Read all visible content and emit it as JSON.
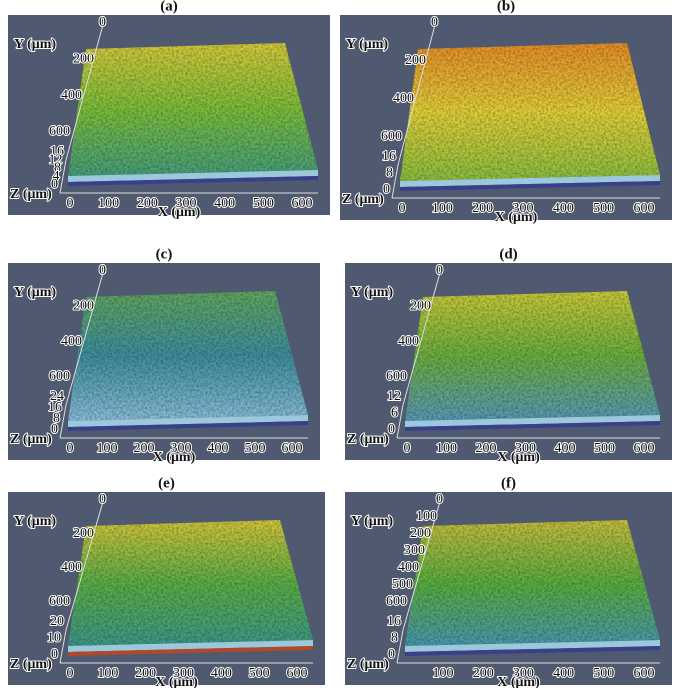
{
  "panels": [
    {
      "label": "(a)",
      "y_label": "Y (μm)",
      "y_ticks": [
        0,
        200,
        400,
        600
      ],
      "z_label": "Z (μm)",
      "z_ticks": [
        16,
        12,
        8,
        4,
        0
      ],
      "x_label": "X (μm)",
      "x_ticks": [
        0,
        100,
        200,
        300,
        400,
        500,
        600
      ]
    },
    {
      "label": "(b)",
      "y_label": "Y (μm)",
      "y_ticks": [
        0,
        200,
        400,
        600
      ],
      "z_label": "Z (μm)",
      "z_ticks": [
        16,
        8,
        0
      ],
      "x_label": "X (μm)",
      "x_ticks": [
        0,
        100,
        200,
        300,
        400,
        500,
        600
      ]
    },
    {
      "label": "(c)",
      "y_label": "Y (μm)",
      "y_ticks": [
        0,
        200,
        400,
        600
      ],
      "z_label": "Z (μm)",
      "z_ticks": [
        24,
        16,
        8,
        0
      ],
      "x_label": "X (μm)",
      "x_ticks": [
        0,
        100,
        200,
        300,
        400,
        500,
        600
      ]
    },
    {
      "label": "(d)",
      "y_label": "Y (μm)",
      "y_ticks": [
        0,
        200,
        400,
        600
      ],
      "z_label": "Z (μm)",
      "z_ticks": [
        12,
        6,
        0
      ],
      "x_label": "X (μm)",
      "x_ticks": [
        0,
        100,
        200,
        300,
        400,
        500,
        600
      ]
    },
    {
      "label": "(e)",
      "y_label": "Y (μm)",
      "y_ticks": [
        0,
        200,
        400,
        600
      ],
      "z_label": "Z (μm)",
      "z_ticks": [
        20,
        10,
        0
      ],
      "x_label": "X (μm)",
      "x_ticks": [
        0,
        100,
        200,
        300,
        400,
        500,
        600
      ]
    },
    {
      "label": "(f)",
      "y_label": "Y (μm)",
      "y_ticks": [
        0,
        100,
        200,
        300,
        400,
        500,
        600
      ],
      "z_label": "Z (μm)",
      "z_ticks": [
        16,
        8,
        0
      ],
      "x_label": "X (μm)",
      "x_ticks": [
        100,
        200,
        300,
        400,
        500,
        600
      ]
    }
  ]
}
